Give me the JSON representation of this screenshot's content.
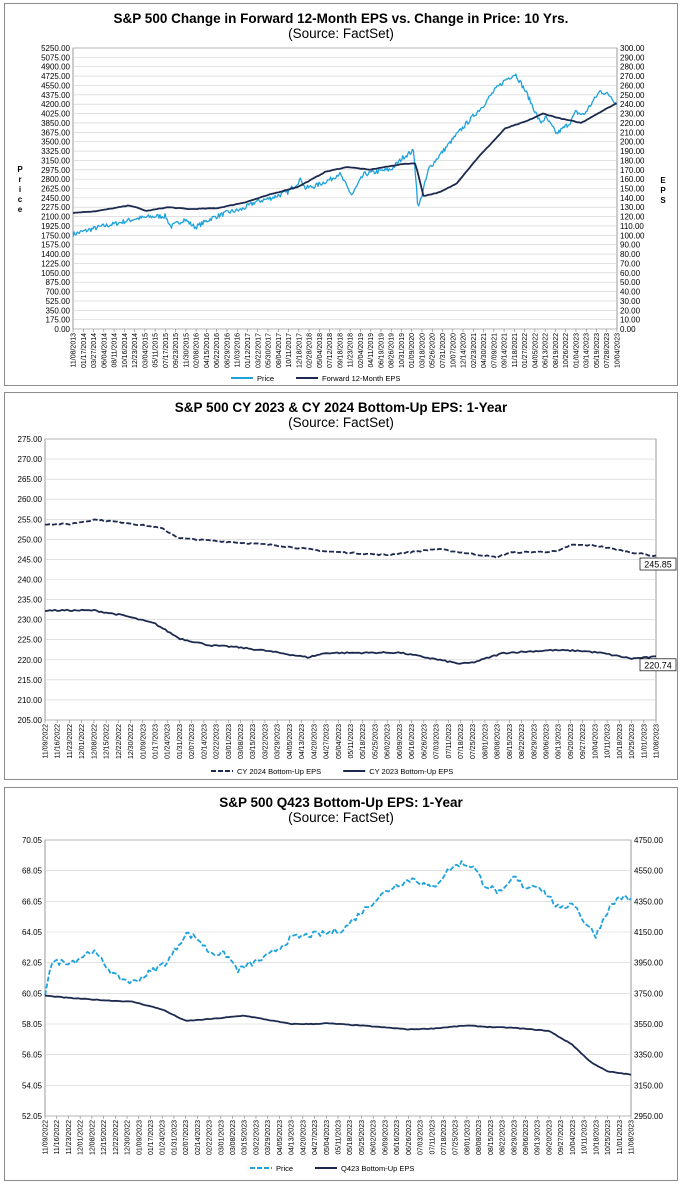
{
  "colors": {
    "price": "#1ea2dc",
    "eps": "#1b2a4e",
    "grid": "#cfcfcf"
  },
  "chart_data": [
    {
      "id": "c1",
      "type": "line",
      "title": "S&P 500 Change in Forward 12-Month EPS vs. Change in Price: 10 Yrs.",
      "subtitle": "(Source: FactSet)",
      "ylabel": "Price",
      "y2label": "EPS",
      "ylim": [
        0,
        5250
      ],
      "y2lim": [
        0,
        300
      ],
      "yticks": [
        "5250.00",
        "5075.00",
        "4900.00",
        "4725.00",
        "4550.00",
        "4375.00",
        "4200.00",
        "4025.00",
        "3850.00",
        "3675.00",
        "3500.00",
        "3325.00",
        "3150.00",
        "2975.00",
        "2800.00",
        "2625.00",
        "2450.00",
        "2275.00",
        "2100.00",
        "1925.00",
        "1750.00",
        "1575.00",
        "1400.00",
        "1225.00",
        "1050.00",
        "875.00",
        "700.00",
        "525.00",
        "350.00",
        "175.00",
        "0.00"
      ],
      "y2ticks": [
        "300.00",
        "290.00",
        "280.00",
        "270.00",
        "260.00",
        "250.00",
        "240.00",
        "230.00",
        "220.00",
        "210.00",
        "200.00",
        "190.00",
        "180.00",
        "170.00",
        "160.00",
        "150.00",
        "140.00",
        "130.00",
        "120.00",
        "110.00",
        "100.00",
        "90.00",
        "80.00",
        "70.00",
        "60.00",
        "50.00",
        "40.00",
        "30.00",
        "20.00",
        "10.00",
        "0.00"
      ],
      "xticks": [
        "11/08/2013",
        "01/17/2014",
        "03/27/2014",
        "06/04/2014",
        "08/11/2014",
        "10/16/2014",
        "12/23/2014",
        "03/04/2015",
        "05/11/2015",
        "07/17/2015",
        "09/23/2015",
        "11/30/2015",
        "02/08/2016",
        "04/15/2016",
        "06/22/2016",
        "08/29/2016",
        "11/03/2016",
        "01/12/2017",
        "03/22/2017",
        "05/30/2017",
        "08/04/2017",
        "10/11/2017",
        "12/18/2017",
        "02/28/2018",
        "05/04/2018",
        "07/12/2018",
        "09/18/2018",
        "11/23/2018",
        "02/04/2019",
        "04/11/2019",
        "06/19/2019",
        "08/26/2019",
        "10/31/2019",
        "01/09/2020",
        "03/18/2020",
        "05/26/2020",
        "07/31/2020",
        "10/07/2020",
        "12/14/2020",
        "02/23/2021",
        "04/30/2021",
        "07/09/2021",
        "09/14/2021",
        "11/18/2021",
        "01/27/2022",
        "04/05/2022",
        "06/13/2022",
        "08/19/2022",
        "10/26/2022",
        "01/04/2023",
        "03/14/2023",
        "05/19/2023",
        "07/28/2023",
        "10/04/2023"
      ],
      "series": [
        {
          "name": "Price",
          "axis": "left",
          "style": "solid",
          "x": [
            2013.85,
            2014.1,
            2014.35,
            2014.6,
            2014.8,
            2015.0,
            2015.3,
            2015.55,
            2015.65,
            2015.9,
            2016.1,
            2016.4,
            2016.7,
            2016.95,
            2017.2,
            2017.5,
            2017.8,
            2018.05,
            2018.12,
            2018.3,
            2018.6,
            2018.75,
            2018.98,
            2019.2,
            2019.5,
            2019.7,
            2019.95,
            2020.12,
            2020.2,
            2020.4,
            2020.6,
            2020.9,
            2021.1,
            2021.4,
            2021.6,
            2021.8,
            2021.99,
            2022.2,
            2022.45,
            2022.55,
            2022.75,
            2022.99,
            2023.1,
            2023.25,
            2023.55,
            2023.75,
            2023.85
          ],
          "values": [
            1770,
            1840,
            1910,
            1960,
            2010,
            2060,
            2100,
            2110,
            1910,
            2050,
            1900,
            2070,
            2180,
            2230,
            2370,
            2450,
            2560,
            2800,
            2630,
            2670,
            2800,
            2910,
            2500,
            2890,
            2950,
            2980,
            3230,
            3330,
            2240,
            3000,
            3250,
            3620,
            3850,
            4180,
            4450,
            4650,
            4770,
            4400,
            3850,
            3950,
            3650,
            3850,
            4050,
            4000,
            4450,
            4350,
            4200
          ]
        },
        {
          "name": "Forward 12-Month EPS",
          "axis": "right",
          "style": "solid",
          "x": [
            2013.85,
            2014.3,
            2014.9,
            2015.2,
            2015.6,
            2016.0,
            2016.5,
            2017.0,
            2017.5,
            2018.0,
            2018.5,
            2018.9,
            2019.3,
            2019.9,
            2020.15,
            2020.3,
            2020.6,
            2020.9,
            2021.3,
            2021.8,
            2022.2,
            2022.5,
            2022.8,
            2023.2,
            2023.5,
            2023.85
          ],
          "values": [
            124,
            126,
            132,
            126,
            130,
            128,
            129,
            135,
            144,
            152,
            168,
            173,
            170,
            176,
            177,
            142,
            146,
            155,
            183,
            214,
            222,
            230,
            225,
            220,
            230,
            241
          ]
        }
      ]
    },
    {
      "id": "c2",
      "type": "line",
      "title": "S&P 500 CY 2023 & CY 2024 Bottom-Up  EPS: 1-Year",
      "subtitle": "(Source: FactSet)",
      "ylim": [
        205,
        275
      ],
      "yticks": [
        "275.00",
        "270.00",
        "265.00",
        "260.00",
        "255.00",
        "250.00",
        "245.00",
        "240.00",
        "235.00",
        "230.00",
        "225.00",
        "220.00",
        "215.00",
        "210.00",
        "205.00"
      ],
      "xticks": [
        "11/09/2022",
        "11/16/2022",
        "11/23/2022",
        "12/01/2022",
        "12/08/2022",
        "12/15/2022",
        "12/22/2022",
        "12/30/2022",
        "01/09/2023",
        "01/17/2023",
        "01/24/2023",
        "01/31/2023",
        "02/07/2023",
        "02/14/2023",
        "02/22/2023",
        "03/01/2023",
        "03/08/2023",
        "03/15/2023",
        "03/22/2023",
        "03/29/2023",
        "04/05/2023",
        "04/13/2023",
        "04/20/2023",
        "04/27/2023",
        "05/04/2023",
        "05/11/2023",
        "05/18/2023",
        "05/25/2023",
        "06/02/2023",
        "06/09/2023",
        "06/16/2023",
        "06/26/2023",
        "07/03/2023",
        "07/11/2023",
        "07/18/2023",
        "07/25/2023",
        "08/01/2023",
        "08/08/2023",
        "08/15/2023",
        "08/22/2023",
        "08/29/2023",
        "09/06/2023",
        "09/13/2023",
        "09/20/2023",
        "09/27/2023",
        "10/04/2023",
        "10/11/2023",
        "10/18/2023",
        "10/25/2023",
        "11/01/2023",
        "11/08/2023"
      ],
      "series": [
        {
          "name": "CY 2024 Bottom-Up EPS",
          "style": "dashed",
          "x": [
            0,
            0.04,
            0.08,
            0.13,
            0.19,
            0.22,
            0.26,
            0.3,
            0.38,
            0.46,
            0.56,
            0.64,
            0.66,
            0.74,
            0.76,
            0.84,
            0.86,
            0.9,
            0.95,
            1.0
          ],
          "values": [
            253.8,
            253.8,
            254.9,
            254.2,
            252.8,
            250.3,
            249.8,
            249.4,
            248.5,
            247.0,
            246.1,
            247.6,
            247.2,
            245.5,
            246.7,
            247.0,
            248.6,
            248.5,
            247.0,
            245.85
          ]
        },
        {
          "name": "CY 2023 Bottom-Up EPS",
          "style": "solid",
          "x": [
            0,
            0.08,
            0.13,
            0.18,
            0.22,
            0.27,
            0.31,
            0.36,
            0.43,
            0.46,
            0.58,
            0.68,
            0.7,
            0.75,
            0.83,
            0.88,
            0.91,
            0.96,
            1.0
          ],
          "values": [
            232.3,
            232.3,
            231.0,
            229.0,
            225.3,
            223.6,
            223.2,
            222.3,
            220.6,
            221.7,
            221.8,
            219.0,
            219.3,
            221.7,
            222.4,
            222.2,
            221.7,
            220.3,
            220.74
          ]
        }
      ],
      "end_labels": [
        "245.85",
        "220.74"
      ]
    },
    {
      "id": "c3",
      "type": "line",
      "title": "S&P 500 Q423 Bottom-Up EPS: 1-Year",
      "subtitle": "(Source: FactSet)",
      "ylim": [
        52.05,
        70.05
      ],
      "y2lim": [
        2950,
        4750
      ],
      "yticks": [
        "70.05",
        "68.05",
        "66.05",
        "64.05",
        "62.05",
        "60.05",
        "58.05",
        "56.05",
        "54.05",
        "52.05"
      ],
      "y2ticks": [
        "4750.00",
        "4550.00",
        "4350.00",
        "4150.00",
        "3950.00",
        "3750.00",
        "3550.00",
        "3350.00",
        "3150.00",
        "2950.00"
      ],
      "xticks": [
        "11/09/2022",
        "11/16/2022",
        "11/23/2022",
        "12/01/2022",
        "12/08/2022",
        "12/15/2022",
        "12/22/2022",
        "12/30/2022",
        "01/09/2023",
        "01/17/2023",
        "01/24/2023",
        "01/31/2023",
        "02/07/2023",
        "02/14/2023",
        "02/22/2023",
        "03/01/2023",
        "03/08/2023",
        "03/15/2023",
        "03/22/2023",
        "03/29/2023",
        "04/05/2023",
        "04/13/2023",
        "04/20/2023",
        "04/27/2023",
        "05/04/2023",
        "05/11/2023",
        "05/18/2023",
        "05/25/2023",
        "06/02/2023",
        "06/09/2023",
        "06/16/2023",
        "06/26/2023",
        "07/03/2023",
        "07/11/2023",
        "07/18/2023",
        "07/25/2023",
        "08/01/2023",
        "08/08/2023",
        "08/15/2023",
        "08/22/2023",
        "08/29/2023",
        "09/06/2023",
        "09/13/2023",
        "09/20/2023",
        "09/27/2023",
        "10/04/2023",
        "10/11/2023",
        "10/18/2023",
        "10/25/2023",
        "11/01/2023",
        "11/08/2023"
      ],
      "series": [
        {
          "name": "Price",
          "axis": "right",
          "style": "dashed",
          "x": [
            0,
            0.01,
            0.05,
            0.08,
            0.1,
            0.12,
            0.15,
            0.18,
            0.21,
            0.24,
            0.26,
            0.28,
            0.31,
            0.33,
            0.35,
            0.38,
            0.42,
            0.45,
            0.48,
            0.51,
            0.54,
            0.57,
            0.6,
            0.63,
            0.66,
            0.69,
            0.71,
            0.73,
            0.75,
            0.78,
            0.8,
            0.82,
            0.84,
            0.86,
            0.88,
            0.9,
            0.92,
            0.94,
            0.96,
            0.98,
            1.0
          ],
          "values": [
            3750,
            3950,
            3960,
            4030,
            3950,
            3860,
            3820,
            3890,
            3960,
            4140,
            4110,
            4020,
            4000,
            3900,
            3940,
            3990,
            4110,
            4130,
            4140,
            4170,
            4280,
            4380,
            4460,
            4500,
            4430,
            4560,
            4600,
            4580,
            4460,
            4400,
            4510,
            4440,
            4460,
            4380,
            4290,
            4350,
            4220,
            4130,
            4290,
            4380,
            4360
          ]
        },
        {
          "name": "Q423 Bottom-Up EPS",
          "axis": "left",
          "style": "solid",
          "x": [
            0,
            0.04,
            0.1,
            0.15,
            0.2,
            0.24,
            0.29,
            0.34,
            0.42,
            0.46,
            0.48,
            0.54,
            0.62,
            0.66,
            0.72,
            0.76,
            0.8,
            0.86,
            0.9,
            0.93,
            0.96,
            0.97,
            1.0
          ],
          "values": [
            59.9,
            59.75,
            59.6,
            59.5,
            59.0,
            58.25,
            58.4,
            58.6,
            58.05,
            58.05,
            58.1,
            57.95,
            57.7,
            57.75,
            57.95,
            57.85,
            57.8,
            57.6,
            56.7,
            55.6,
            54.95,
            54.9,
            54.75
          ]
        }
      ]
    }
  ]
}
